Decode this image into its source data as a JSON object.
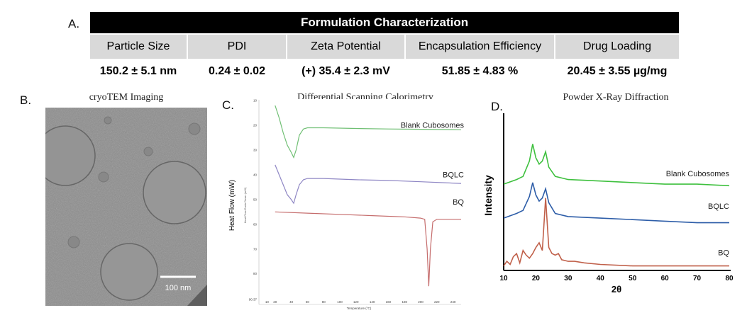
{
  "panels": {
    "a": "A.",
    "b": "B.",
    "c": "C.",
    "d": "D."
  },
  "table": {
    "title": "Formulation Characterization",
    "headers": [
      "Particle Size",
      "PDI",
      "Zeta Potential",
      "Encapsulation Efficiency",
      "Drug Loading"
    ],
    "values": [
      "150.2 ± 5.1 nm",
      "0.24 ± 0.02",
      "(+) 35.4 ± 2.3 mV",
      "51.85 ± 4.83 %",
      "20.45 ± 3.55 µg/mg"
    ]
  },
  "cryotem": {
    "title": "cryoTEM Imaging",
    "scale_label": "100 nm"
  },
  "chart_data": [
    {
      "type": "line",
      "title": "Differential Scanning Calorimetry",
      "xlabel": "Temperature (°C)",
      "ylabel": "Heat Flow (mW)",
      "ylabel_secondary": "Heat Flow Endo Down (mW)",
      "xlim": [
        0,
        250
      ],
      "ylim": [
        10,
        90.37
      ],
      "xticks": [
        "10",
        "20",
        "40",
        "60",
        "80",
        "100",
        "120",
        "140",
        "160",
        "180",
        "200",
        "220",
        "240"
      ],
      "yticks": [
        "10",
        "20",
        "30",
        "40",
        "50",
        "60",
        "70",
        "80",
        "90.37"
      ],
      "series": [
        {
          "name": "Blank Cubosomes",
          "color": "#6fbf73",
          "x": [
            20,
            25,
            30,
            35,
            40,
            43,
            46,
            50,
            55,
            60,
            80,
            120,
            160,
            200,
            250
          ],
          "y": [
            12,
            17,
            23,
            28,
            31,
            33,
            30,
            24,
            21.5,
            21,
            21,
            21.3,
            21.5,
            21.6,
            21.8
          ]
        },
        {
          "name": "BQLC",
          "color": "#8e86c4",
          "x": [
            20,
            25,
            30,
            35,
            40,
            43,
            46,
            50,
            55,
            60,
            80,
            120,
            160,
            200,
            250
          ],
          "y": [
            36,
            40,
            44,
            48,
            50,
            51.5,
            48,
            44,
            42,
            41.5,
            41.5,
            42,
            42.3,
            42.8,
            43.5
          ]
        },
        {
          "name": "BQ",
          "color": "#c56c6c",
          "x": [
            20,
            60,
            100,
            140,
            180,
            200,
            205,
            208,
            210,
            212,
            215,
            220,
            240,
            250
          ],
          "y": [
            55,
            55.5,
            56,
            56.5,
            57,
            57.5,
            58,
            70,
            85,
            70,
            59,
            58,
            58,
            58
          ]
        }
      ]
    },
    {
      "type": "line",
      "title": "Powder X-Ray Diffraction",
      "xlabel": "2θ",
      "ylabel": "Intensity",
      "xlim": [
        10,
        80
      ],
      "xticks": [
        "10",
        "20",
        "30",
        "40",
        "50",
        "60",
        "70",
        "80"
      ],
      "series": [
        {
          "name": "Blank Cubosomes",
          "color": "#3ec03e",
          "x": [
            10,
            14,
            16,
            18,
            19,
            20,
            21,
            22,
            23,
            24,
            26,
            30,
            40,
            50,
            60,
            70,
            80
          ],
          "y": [
            0.55,
            0.58,
            0.6,
            0.7,
            0.81,
            0.72,
            0.68,
            0.7,
            0.76,
            0.66,
            0.6,
            0.58,
            0.57,
            0.56,
            0.55,
            0.55,
            0.54
          ]
        },
        {
          "name": "BQLC",
          "color": "#2d5da8",
          "x": [
            10,
            14,
            16,
            18,
            19,
            20,
            21,
            22,
            23,
            24,
            26,
            30,
            40,
            50,
            60,
            70,
            80
          ],
          "y": [
            0.33,
            0.36,
            0.38,
            0.47,
            0.56,
            0.48,
            0.44,
            0.46,
            0.52,
            0.43,
            0.36,
            0.34,
            0.33,
            0.32,
            0.31,
            0.3,
            0.3
          ]
        },
        {
          "name": "BQ",
          "color": "#c0604a",
          "x": [
            10,
            11,
            12,
            13,
            14,
            15,
            16,
            17,
            18,
            19,
            20,
            21,
            22,
            23,
            24,
            25,
            26,
            27,
            28,
            30,
            32,
            35,
            40,
            50,
            60,
            70,
            80
          ],
          "y": [
            0.02,
            0.05,
            0.03,
            0.08,
            0.1,
            0.04,
            0.12,
            0.09,
            0.07,
            0.1,
            0.14,
            0.17,
            0.12,
            0.46,
            0.14,
            0.1,
            0.09,
            0.1,
            0.06,
            0.05,
            0.05,
            0.04,
            0.03,
            0.02,
            0.02,
            0.02,
            0.02
          ]
        }
      ]
    }
  ]
}
